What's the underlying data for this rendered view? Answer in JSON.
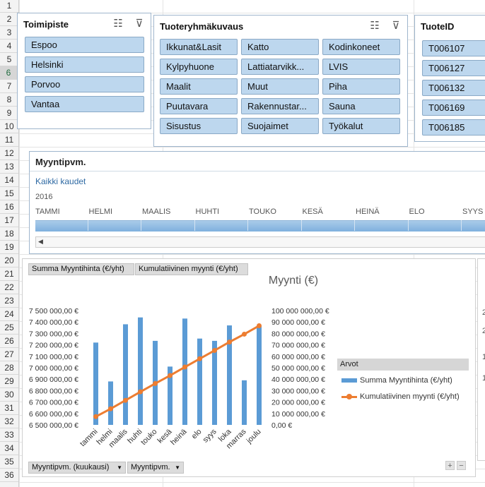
{
  "rows": [
    "1",
    "2",
    "3",
    "4",
    "5",
    "6",
    "7",
    "8",
    "9",
    "10",
    "11",
    "12",
    "13",
    "14",
    "15",
    "16",
    "17",
    "18",
    "19",
    "20",
    "21",
    "22",
    "23",
    "24",
    "25",
    "26",
    "27",
    "28",
    "29",
    "30",
    "31",
    "32",
    "33",
    "34",
    "35",
    "36"
  ],
  "selected_row": "6",
  "slicers": {
    "toimipiste": {
      "title": "Toimipiste",
      "items": [
        "Espoo",
        "Helsinki",
        "Porvoo",
        "Vantaa"
      ]
    },
    "tuoteryhma": {
      "title": "Tuoteryhmäkuvaus",
      "items": [
        "Ikkunat&Lasit",
        "Katto",
        "Kodinkoneet",
        "Kylpyhuone",
        "Lattiatarvikk...",
        "LVIS",
        "Maalit",
        "Muut",
        "Piha",
        "Puutavara",
        "Rakennustar...",
        "Sauna",
        "Sisustus",
        "Suojaimet",
        "Työkalut"
      ]
    },
    "tuoteid": {
      "title": "TuoteID",
      "items": [
        "T006107",
        "T006127",
        "T006132",
        "T006169",
        "T006185"
      ]
    }
  },
  "timeline": {
    "title": "Myyntipvm.",
    "period_label": "Kaikki kaudet",
    "year": "2016",
    "months": [
      "TAMMI",
      "HELMI",
      "MAALIS",
      "HUHTI",
      "TOUKO",
      "KESÄ",
      "HEINÄ",
      "ELO",
      "SYYS"
    ]
  },
  "chart_fields": {
    "value1": "Summa Myyntihinta (€/yht)",
    "value2": "Kumulatiivinen myynti (€/yht)",
    "axis1": "Myyntipvm. (kuukausi)",
    "axis2": "Myyntipvm."
  },
  "chart_data": {
    "type": "bar",
    "title": "Myynti (€)",
    "categories": [
      "tammi",
      "helmi",
      "maalis",
      "huhti",
      "touko",
      "kesä",
      "heinä",
      "elo",
      "syys",
      "loka",
      "marras",
      "joulu"
    ],
    "series": [
      {
        "name": "Summa Myyntihinta (€/yht)",
        "type": "bar",
        "axis": "left",
        "color": "#5b9bd5",
        "values": [
          7220000,
          6880000,
          7380000,
          7440000,
          7235000,
          7010000,
          7430000,
          7255000,
          7235000,
          7370000,
          6890000,
          7370000
        ]
      },
      {
        "name": "Kumulatiivinen myynti (€/yht)",
        "type": "line",
        "axis": "right",
        "color": "#ed7d31",
        "values": [
          7220000,
          14100000,
          21480000,
          28920000,
          36155000,
          43165000,
          50595000,
          57850000,
          65085000,
          72455000,
          79345000,
          86715000
        ]
      }
    ],
    "y_left": {
      "min": 6500000,
      "max": 7500000,
      "step": 100000,
      "tick_labels": [
        "7 500 000,00 €",
        "7 400 000,00 €",
        "7 300 000,00 €",
        "7 200 000,00 €",
        "7 100 000,00 €",
        "7 000 000,00 €",
        "6 900 000,00 €",
        "6 800 000,00 €",
        "6 700 000,00 €",
        "6 600 000,00 €",
        "6 500 000,00 €"
      ]
    },
    "y_right": {
      "min": 0,
      "max": 100000000,
      "step": 10000000,
      "tick_labels": [
        "100 000 000,00 €",
        "90 000 000,00 €",
        "80 000 000,00 €",
        "70 000 000,00 €",
        "60 000 000,00 €",
        "50 000 000,00 €",
        "40 000 000,00 €",
        "30 000 000,00 €",
        "20 000 000,00 €",
        "10 000 000,00 €",
        "0,00 €"
      ]
    },
    "grid": false,
    "legend": {
      "title": "Arvot",
      "position": "right"
    }
  },
  "right_panel_labels": [
    "2",
    "2",
    "1",
    "1"
  ]
}
